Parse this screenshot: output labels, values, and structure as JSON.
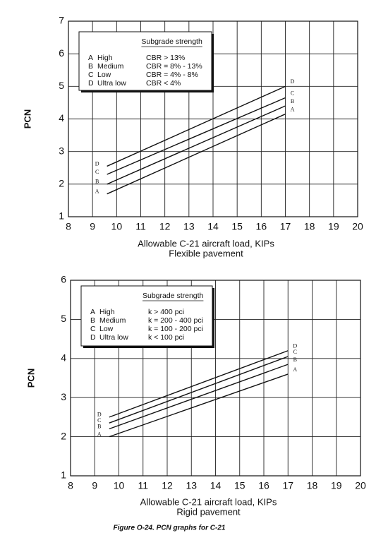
{
  "caption": "Figure O-24.  PCN graphs for C-21",
  "chart_data": [
    {
      "type": "line",
      "ylabel": "PCN",
      "xlabel": "Allowable C-21 aircraft load, KIPs",
      "xlabel_sub": "Flexible pavement",
      "legend_title": "Subgrade strength",
      "xlim": [
        8,
        20
      ],
      "xticks": [
        8,
        9,
        10,
        11,
        12,
        13,
        14,
        15,
        16,
        17,
        18,
        19,
        20
      ],
      "ylim": [
        1,
        7
      ],
      "yticks": [
        1,
        2,
        3,
        4,
        5,
        6,
        7
      ],
      "grid": true,
      "x": [
        9.6,
        17
      ],
      "series": [
        {
          "name": "A",
          "strength": "High",
          "criterion": "CBR > 13%",
          "color": "#111111",
          "values": [
            1.7,
            4.15
          ]
        },
        {
          "name": "B",
          "strength": "Medium",
          "criterion": "CBR = 8% - 13%",
          "color": "#111111",
          "values": [
            2.0,
            4.4
          ]
        },
        {
          "name": "C",
          "strength": "Low",
          "criterion": "CBR = 4% - 8%",
          "color": "#111111",
          "values": [
            2.3,
            4.65
          ]
        },
        {
          "name": "D",
          "strength": "Ultra low",
          "criterion": "CBR < 4%",
          "color": "#111111",
          "values": [
            2.55,
            5.0
          ]
        }
      ]
    },
    {
      "type": "line",
      "ylabel": "PCN",
      "xlabel": "Allowable C-21 aircraft load, KIPs",
      "xlabel_sub": "Rigid pavement",
      "legend_title": "Subgrade strength",
      "xlim": [
        8,
        20
      ],
      "xticks": [
        8,
        9,
        10,
        11,
        12,
        13,
        14,
        15,
        16,
        17,
        18,
        19,
        20
      ],
      "ylim": [
        1,
        6
      ],
      "yticks": [
        1,
        2,
        3,
        4,
        5,
        6
      ],
      "grid": true,
      "x": [
        9.6,
        17
      ],
      "series": [
        {
          "name": "A",
          "strength": "High",
          "criterion": "k > 400 pci",
          "color": "#111111",
          "values": [
            2.0,
            3.6
          ]
        },
        {
          "name": "B",
          "strength": "Medium",
          "criterion": "k = 200 - 400 pci",
          "color": "#111111",
          "values": [
            2.2,
            3.85
          ]
        },
        {
          "name": "C",
          "strength": "Low",
          "criterion": "k = 100 - 200 pci",
          "color": "#111111",
          "values": [
            2.35,
            4.05
          ]
        },
        {
          "name": "D",
          "strength": "Ultra low",
          "criterion": "k < 100 pci",
          "color": "#111111",
          "values": [
            2.5,
            4.2
          ]
        }
      ]
    }
  ]
}
